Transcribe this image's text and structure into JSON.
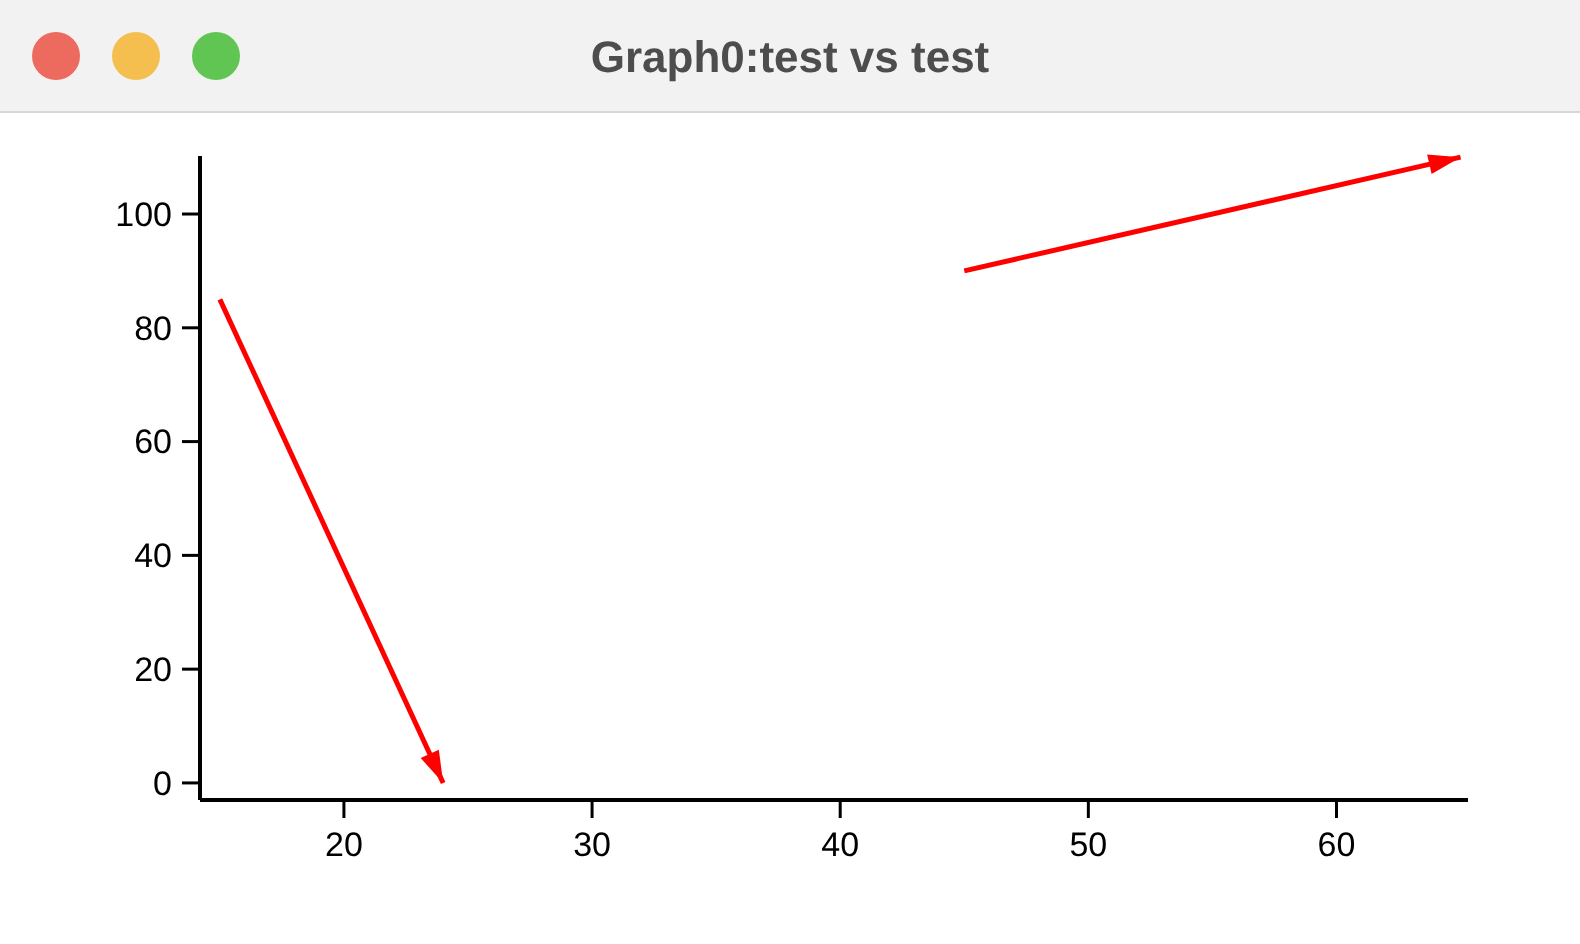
{
  "chart_data": {
    "type": "line",
    "title": "Graph0:test vs test",
    "series": [
      {
        "color": "#ff0000",
        "x": [
          15,
          24
        ],
        "values": [
          85,
          0
        ]
      },
      {
        "color": "#ff0000",
        "x": [
          45,
          65
        ],
        "values": [
          90,
          110
        ]
      }
    ],
    "xlim": [
      14.2,
      65.3
    ],
    "ylim": [
      -3,
      110.2
    ],
    "xticks": [
      20,
      30,
      40,
      50,
      60
    ],
    "yticks": [
      0,
      20,
      40,
      60,
      80,
      100
    ],
    "grid": false,
    "marker": "none",
    "line_style": "solid"
  }
}
